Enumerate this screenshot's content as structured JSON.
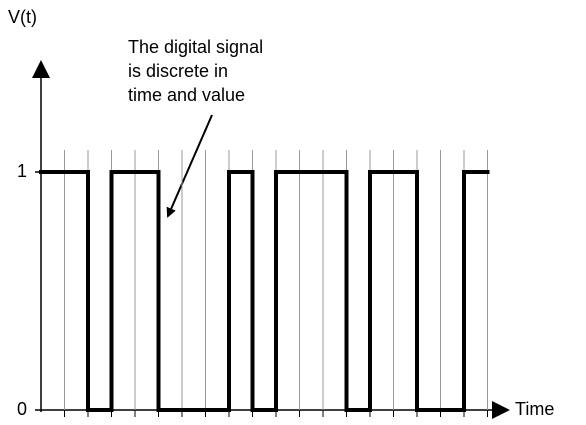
{
  "chart_data": {
    "type": "step",
    "y_label": "V(t)",
    "x_label": "Time",
    "annotation": [
      "The digital signal",
      "is discrete in",
      "time and value"
    ],
    "categories": [
      null,
      null,
      null,
      null,
      null,
      null,
      null,
      null,
      null,
      null,
      null,
      null,
      null,
      null,
      null,
      null,
      null,
      null,
      null
    ],
    "values": [
      1,
      1,
      0,
      1,
      1,
      0,
      0,
      0,
      1,
      0,
      1,
      1,
      1,
      0,
      1,
      1,
      0,
      0,
      1
    ],
    "color": "#000000",
    "ylim": [
      0,
      1
    ],
    "yticks": [
      0,
      1
    ],
    "grid": true
  }
}
